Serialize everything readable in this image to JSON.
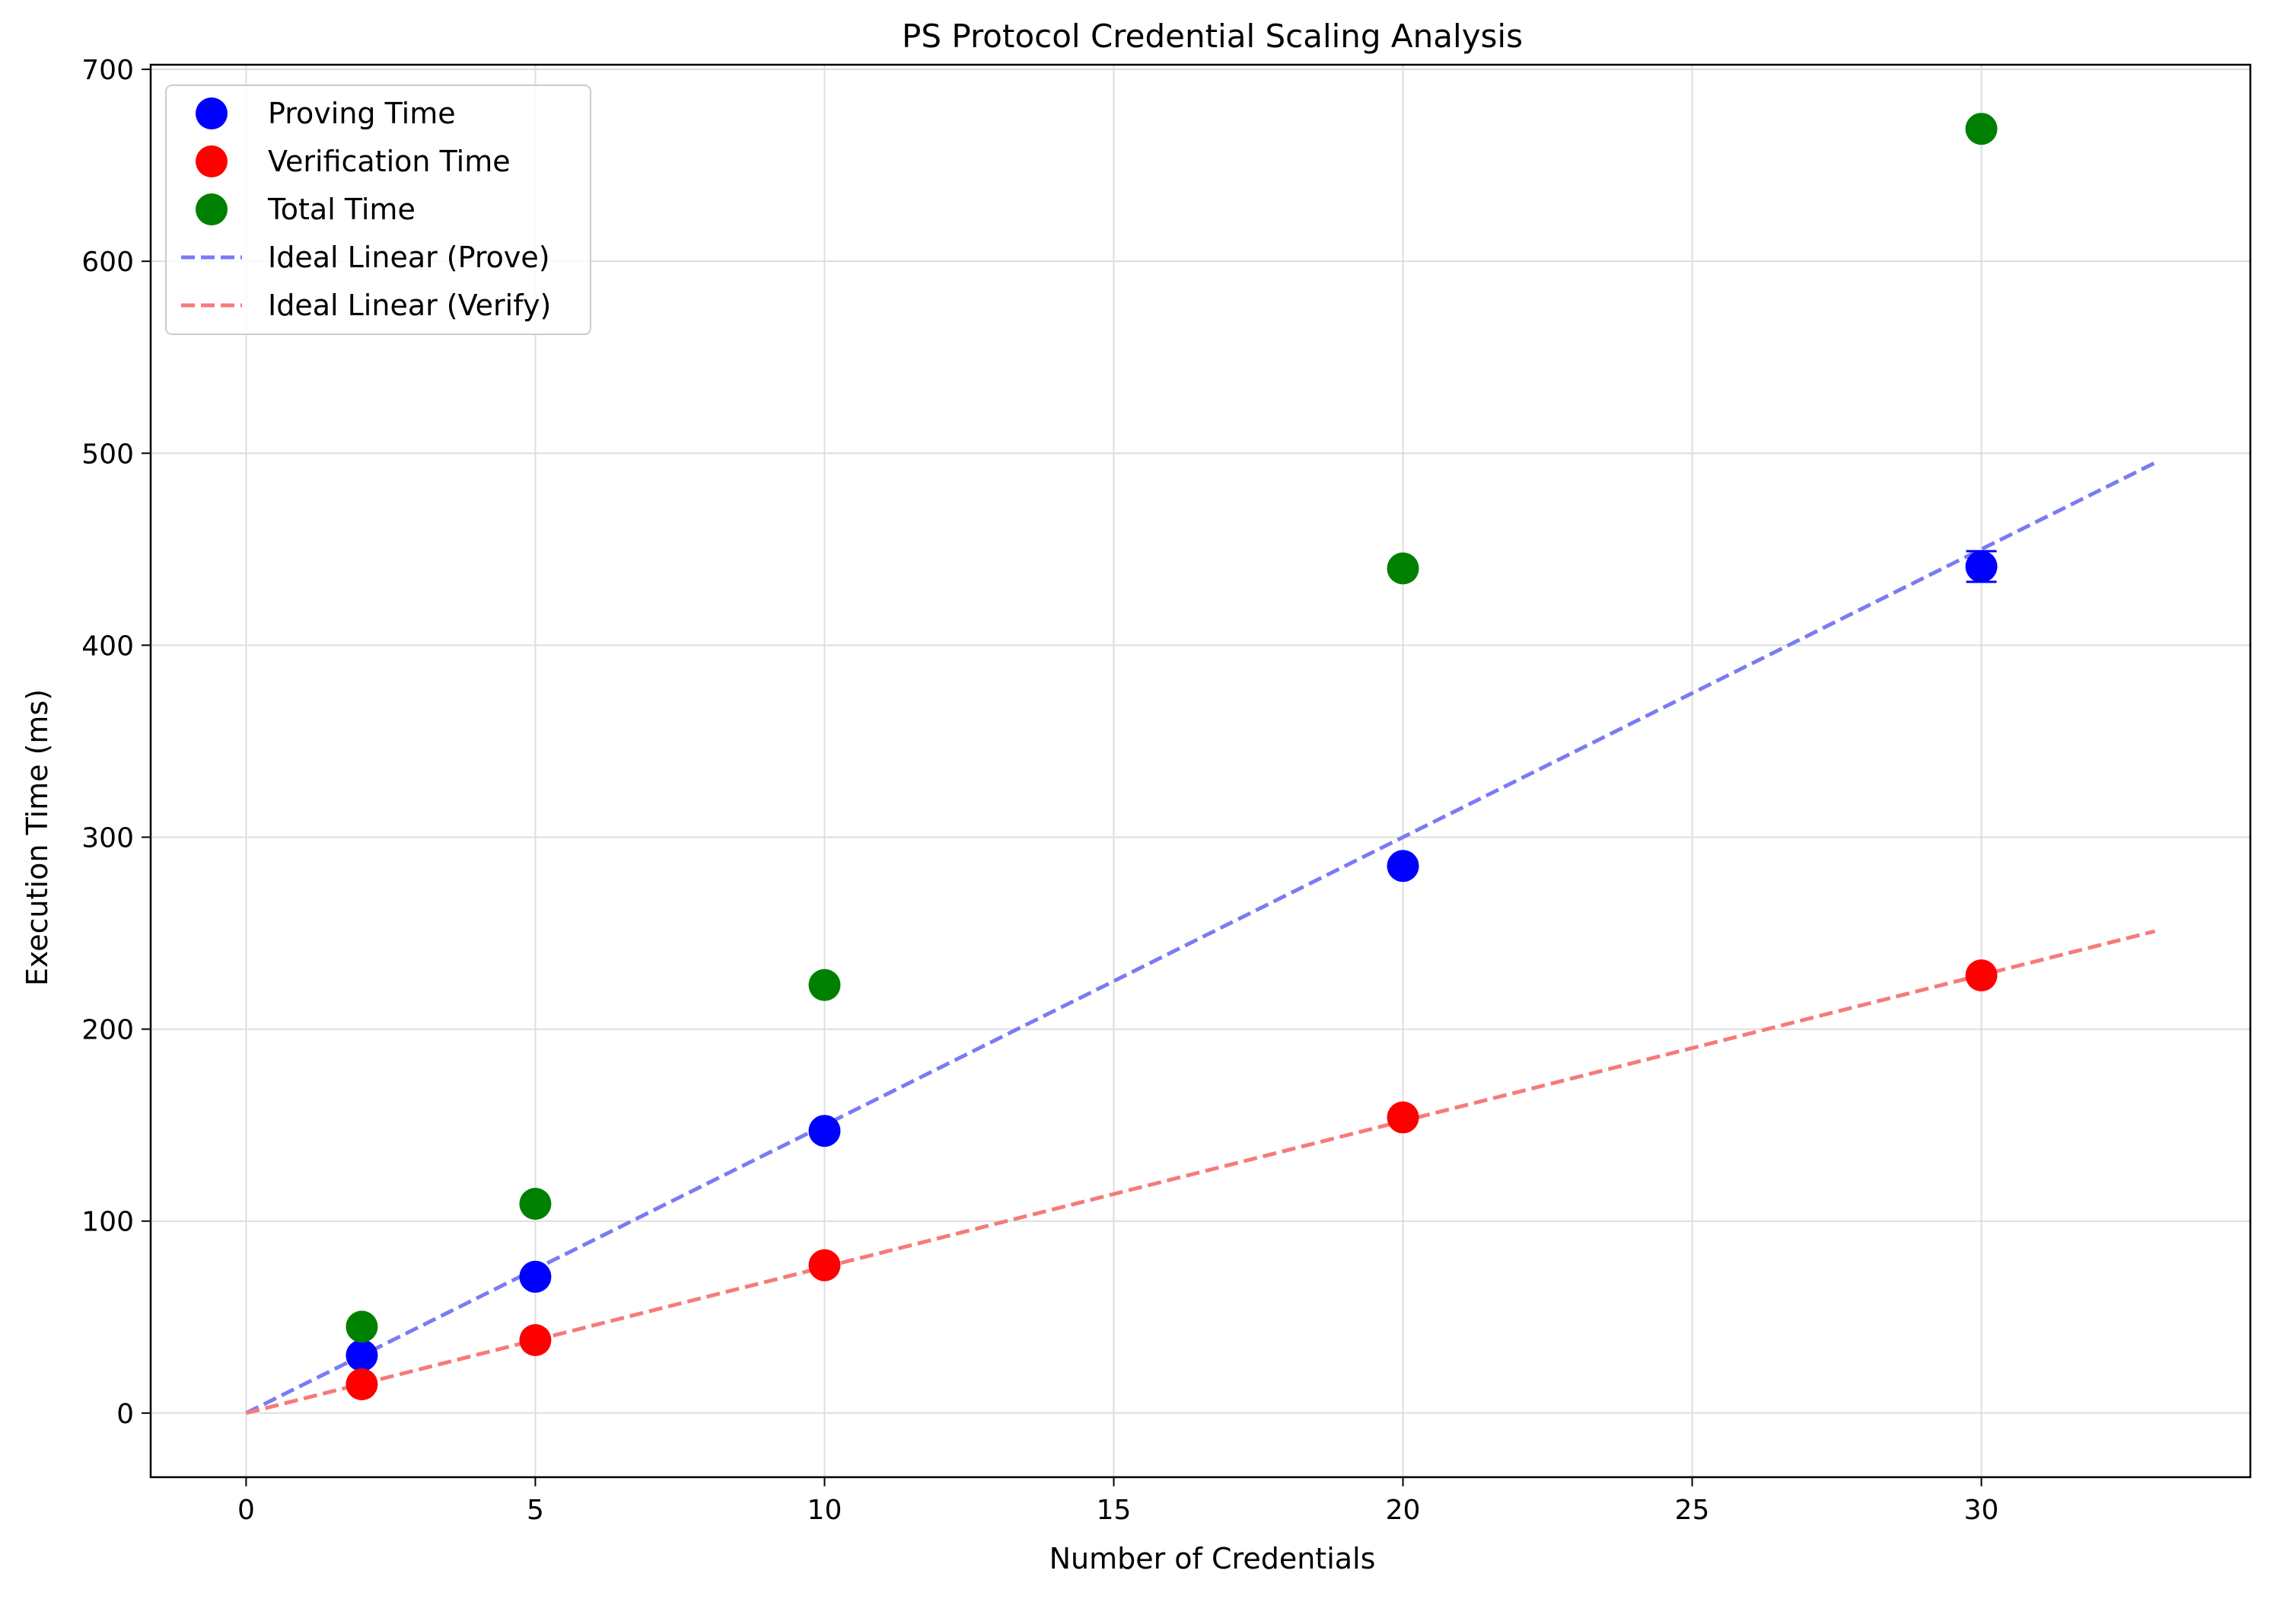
{
  "chart_data": {
    "type": "scatter",
    "title": "PS Protocol Credential Scaling Analysis",
    "xlabel": "Number of Credentials",
    "ylabel": "Execution Time (ms)",
    "xlim": [
      -1.65,
      34.65
    ],
    "ylim": [
      -33.4,
      702.4
    ],
    "xticks": [
      0,
      5,
      10,
      15,
      20,
      25,
      30
    ],
    "yticks": [
      0,
      100,
      200,
      300,
      400,
      500,
      600,
      700
    ],
    "grid": true,
    "legend_position": "top-left",
    "series": [
      {
        "name": "Proving Time",
        "kind": "scatter",
        "color": "#0000ff",
        "points": [
          {
            "x": 2,
            "y": 30
          },
          {
            "x": 5,
            "y": 71
          },
          {
            "x": 10,
            "y": 147
          },
          {
            "x": 20,
            "y": 285
          },
          {
            "x": 30,
            "y": 441
          }
        ],
        "errors": [
          0,
          0,
          0,
          0,
          8
        ]
      },
      {
        "name": "Verification Time",
        "kind": "scatter",
        "color": "#ff0000",
        "points": [
          {
            "x": 2,
            "y": 15
          },
          {
            "x": 5,
            "y": 38
          },
          {
            "x": 10,
            "y": 77
          },
          {
            "x": 20,
            "y": 154
          },
          {
            "x": 30,
            "y": 228
          }
        ],
        "errors": [
          0,
          0,
          0,
          0,
          0
        ]
      },
      {
        "name": "Total Time",
        "kind": "scatter",
        "color": "#008000",
        "points": [
          {
            "x": 2,
            "y": 45
          },
          {
            "x": 5,
            "y": 109
          },
          {
            "x": 10,
            "y": 223
          },
          {
            "x": 20,
            "y": 440
          },
          {
            "x": 30,
            "y": 669
          }
        ]
      },
      {
        "name": "Ideal Linear (Prove)",
        "kind": "dashed-line",
        "color": "#7b7bf5",
        "points": [
          {
            "x": 0,
            "y": 0
          },
          {
            "x": 33,
            "y": 495
          }
        ]
      },
      {
        "name": "Ideal Linear (Verify)",
        "kind": "dashed-line",
        "color": "#f57b7b",
        "points": [
          {
            "x": 0,
            "y": 0
          },
          {
            "x": 33,
            "y": 251
          }
        ]
      }
    ]
  }
}
